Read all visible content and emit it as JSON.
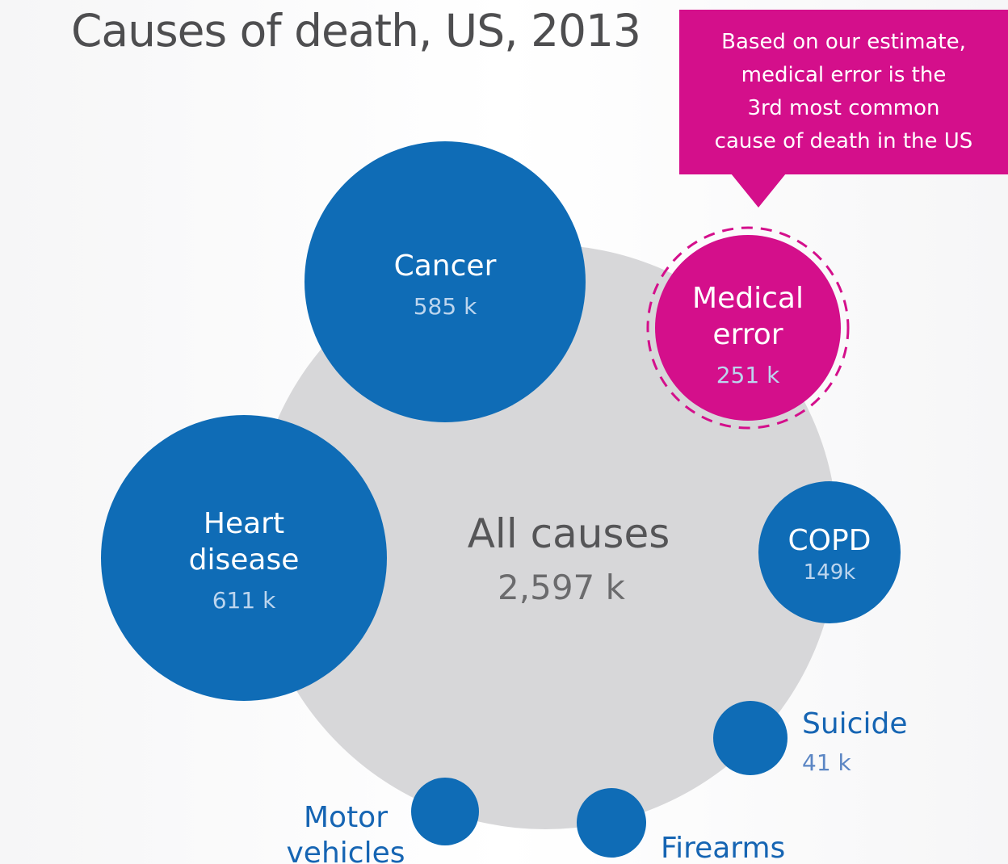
{
  "chart_data": {
    "type": "bubble",
    "title": "Causes of death, US, 2013",
    "callout": [
      "Based on our estimate,",
      "medical error is the",
      "3rd most common",
      "cause of death in the US"
    ],
    "total": {
      "name": "All causes",
      "value": 2597,
      "value_label": "2,597 k"
    },
    "series": [
      {
        "name": "Heart disease",
        "value": 611,
        "value_label": "611 k",
        "lines": [
          "Heart",
          "disease"
        ],
        "highlight": false,
        "label_outside": false
      },
      {
        "name": "Cancer",
        "value": 585,
        "value_label": "585 k",
        "lines": [
          "Cancer"
        ],
        "highlight": false,
        "label_outside": false
      },
      {
        "name": "Medical error",
        "value": 251,
        "value_label": "251 k",
        "lines": [
          "Medical",
          "error"
        ],
        "highlight": true,
        "label_outside": false
      },
      {
        "name": "COPD",
        "value": 149,
        "value_label": "149k",
        "lines": [
          "COPD"
        ],
        "highlight": false,
        "label_outside": false
      },
      {
        "name": "Suicide",
        "value": 41,
        "value_label": "41 k",
        "lines": [
          "Suicide"
        ],
        "highlight": false,
        "label_outside": true
      },
      {
        "name": "Firearms",
        "value": null,
        "value_label": "",
        "lines": [
          "Firearms"
        ],
        "highlight": false,
        "label_outside": true
      },
      {
        "name": "Motor vehicles",
        "value": null,
        "value_label": "",
        "lines": [
          "Motor",
          "vehicles"
        ],
        "highlight": false,
        "label_outside": true
      }
    ],
    "colors": {
      "cause": "#0f6cb6",
      "highlight": "#d40f8b",
      "total": "#d7d7d9",
      "inner_label": "#ffffff",
      "inner_value": "#bcd5ee",
      "outer_label": "#1665b3",
      "outer_value": "#5b86c4",
      "total_label": "#555557",
      "total_value": "#6b6b6d"
    }
  }
}
